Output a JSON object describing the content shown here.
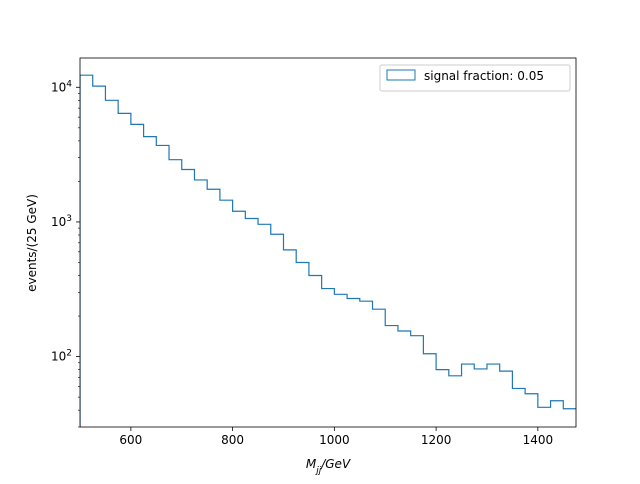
{
  "chart_data": {
    "type": "histogram",
    "y_scale": "log",
    "xlabel_base": "M",
    "xlabel_sub": "jj",
    "xlabel_unit": "/GeV",
    "ylabel": "events/(25 GeV)",
    "xlim": [
      500,
      1475
    ],
    "ylim": [
      30,
      16500
    ],
    "x_ticks": [
      600,
      800,
      1000,
      1200,
      1400
    ],
    "y_ticks": [
      {
        "value": 100,
        "base": "10",
        "exp": "2"
      },
      {
        "value": 1000,
        "base": "10",
        "exp": "3"
      },
      {
        "value": 10000,
        "base": "10",
        "exp": "4"
      }
    ],
    "legend": {
      "label": "signal fraction: 0.05",
      "placement": "upper right"
    },
    "series_color": "#1f77b4",
    "bin_width": 25,
    "bin_start": 500,
    "values": [
      12300,
      10200,
      8000,
      6400,
      5300,
      4300,
      3700,
      2900,
      2450,
      2050,
      1750,
      1450,
      1200,
      1060,
      960,
      810,
      620,
      500,
      400,
      320,
      290,
      270,
      258,
      225,
      170,
      155,
      143,
      105,
      80,
      72,
      88,
      81,
      88,
      78,
      58,
      53,
      42,
      47,
      41
    ]
  }
}
